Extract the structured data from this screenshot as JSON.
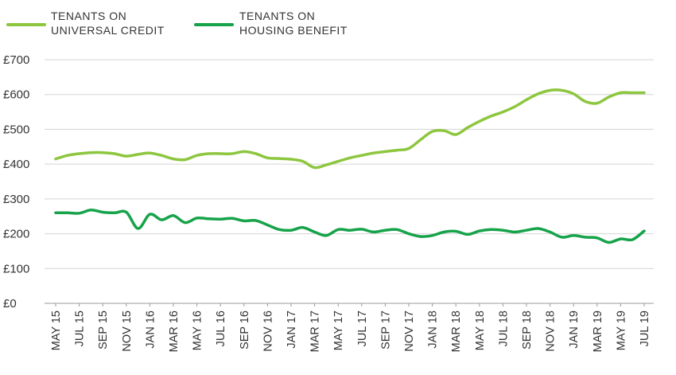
{
  "chart_data": {
    "type": "line",
    "title": "",
    "xlabel": "",
    "ylabel": "",
    "ylim": [
      0,
      700
    ],
    "y_ticks": [
      "£0",
      "£100",
      "£200",
      "£300",
      "£400",
      "£500",
      "£600",
      "£700"
    ],
    "y_tick_values": [
      0,
      100,
      200,
      300,
      400,
      500,
      600,
      700
    ],
    "grid": "horizontal",
    "legend": {
      "placement": "top-left"
    },
    "x_tick_labels": [
      "MAY 15",
      "JUL 15",
      "SEP 15",
      "NOV 15",
      "JAN 16",
      "MAR 16",
      "MAY 16",
      "JUL 16",
      "SEP 16",
      "NOV 16",
      "JAN 17",
      "MAR 17",
      "MAY 17",
      "JUL 17",
      "SEP 17",
      "NOV 17",
      "JAN 18",
      "MAR 18",
      "MAY 18",
      "JUL 18",
      "SEP 18",
      "NOV 18",
      "JAN 19",
      "MAR 19",
      "MAY 19",
      "JUL 19"
    ],
    "x": [
      "May 15",
      "Jun 15",
      "Jul 15",
      "Aug 15",
      "Sep 15",
      "Oct 15",
      "Nov 15",
      "Dec 15",
      "Jan 16",
      "Feb 16",
      "Mar 16",
      "Apr 16",
      "May 16",
      "Jun 16",
      "Jul 16",
      "Aug 16",
      "Sep 16",
      "Oct 16",
      "Nov 16",
      "Dec 16",
      "Jan 17",
      "Feb 17",
      "Mar 17",
      "Apr 17",
      "May 17",
      "Jun 17",
      "Jul 17",
      "Aug 17",
      "Sep 17",
      "Oct 17",
      "Nov 17",
      "Dec 17",
      "Jan 18",
      "Feb 18",
      "Mar 18",
      "Apr 18",
      "May 18",
      "Jun 18",
      "Jul 18",
      "Aug 18",
      "Sep 18",
      "Oct 18",
      "Nov 18",
      "Dec 18",
      "Jan 19",
      "Feb 19",
      "Mar 19",
      "Apr 19",
      "May 19",
      "Jun 19",
      "Jul 19"
    ],
    "series": [
      {
        "name_lines": [
          "TENANTS ON",
          "UNIVERSAL CREDIT"
        ],
        "color": "#8dc63f",
        "values": [
          415,
          425,
          430,
          433,
          433,
          430,
          423,
          428,
          432,
          425,
          415,
          413,
          425,
          430,
          430,
          430,
          436,
          430,
          418,
          416,
          414,
          408,
          390,
          398,
          408,
          418,
          425,
          432,
          436,
          440,
          445,
          470,
          494,
          496,
          485,
          505,
          523,
          538,
          550,
          565,
          585,
          602,
          612,
          612,
          602,
          580,
          575,
          593,
          605,
          605,
          605
        ]
      },
      {
        "name_lines": [
          "TENANTS ON",
          "HOUSING BENEFIT"
        ],
        "color": "#16a34a",
        "values": [
          260,
          260,
          259,
          268,
          262,
          260,
          262,
          215,
          256,
          240,
          252,
          232,
          245,
          243,
          242,
          244,
          237,
          238,
          225,
          212,
          210,
          218,
          205,
          195,
          212,
          210,
          213,
          205,
          210,
          212,
          200,
          192,
          195,
          205,
          207,
          198,
          208,
          212,
          210,
          205,
          210,
          215,
          205,
          190,
          195,
          190,
          188,
          175,
          185,
          183,
          208
        ]
      }
    ]
  }
}
